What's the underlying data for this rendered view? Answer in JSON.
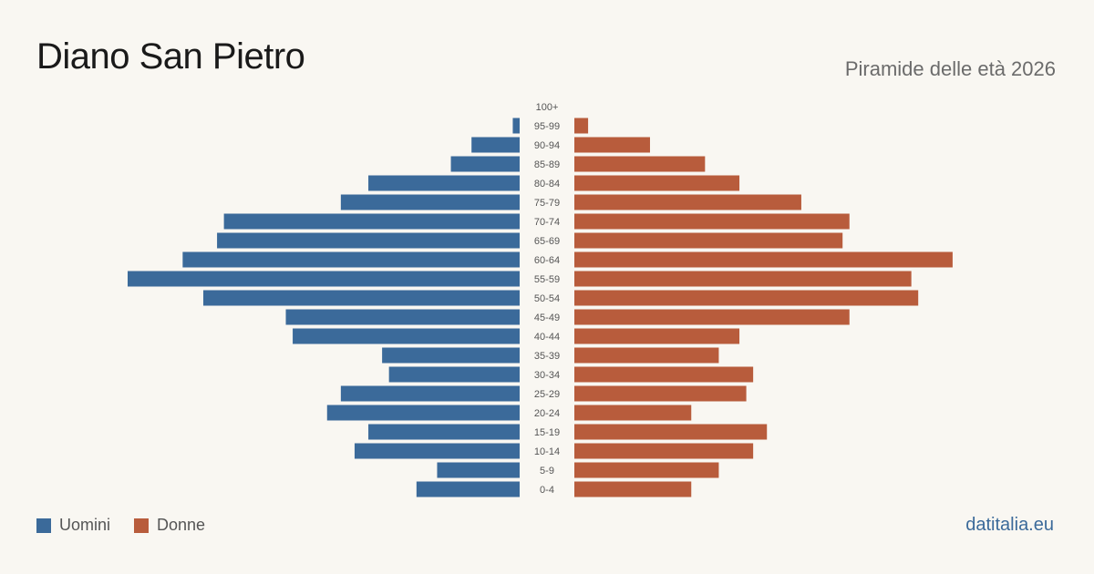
{
  "header": {
    "title": "Diano San Pietro",
    "subtitle": "Piramide delle età 2026"
  },
  "legend": {
    "men_label": "Uomini",
    "women_label": "Donne"
  },
  "brand": "datitalia.eu",
  "colors": {
    "men": "#3b6a9a",
    "women": "#b85c3c",
    "background": "#f9f7f2"
  },
  "chart_data": {
    "type": "bar",
    "orientation": "horizontal-pyramid",
    "title": "Diano San Pietro",
    "subtitle": "Piramide delle età 2026",
    "categories": [
      "100+",
      "95-99",
      "90-94",
      "85-89",
      "80-84",
      "75-79",
      "70-74",
      "65-69",
      "60-64",
      "55-59",
      "50-54",
      "45-49",
      "40-44",
      "35-39",
      "30-34",
      "25-29",
      "20-24",
      "15-19",
      "10-14",
      "5-9",
      "0-4"
    ],
    "series": [
      {
        "name": "Uomini",
        "values": [
          0,
          1,
          7,
          10,
          22,
          26,
          43,
          44,
          49,
          57,
          46,
          34,
          33,
          20,
          19,
          26,
          28,
          22,
          24,
          12,
          15
        ]
      },
      {
        "name": "Donne",
        "values": [
          0,
          2,
          11,
          19,
          24,
          33,
          40,
          39,
          55,
          49,
          50,
          40,
          24,
          21,
          26,
          25,
          17,
          28,
          26,
          21,
          17
        ]
      }
    ],
    "xlim": [
      0,
      57
    ],
    "axis_lines": false,
    "grid": false,
    "legend_position": "bottom-left"
  }
}
